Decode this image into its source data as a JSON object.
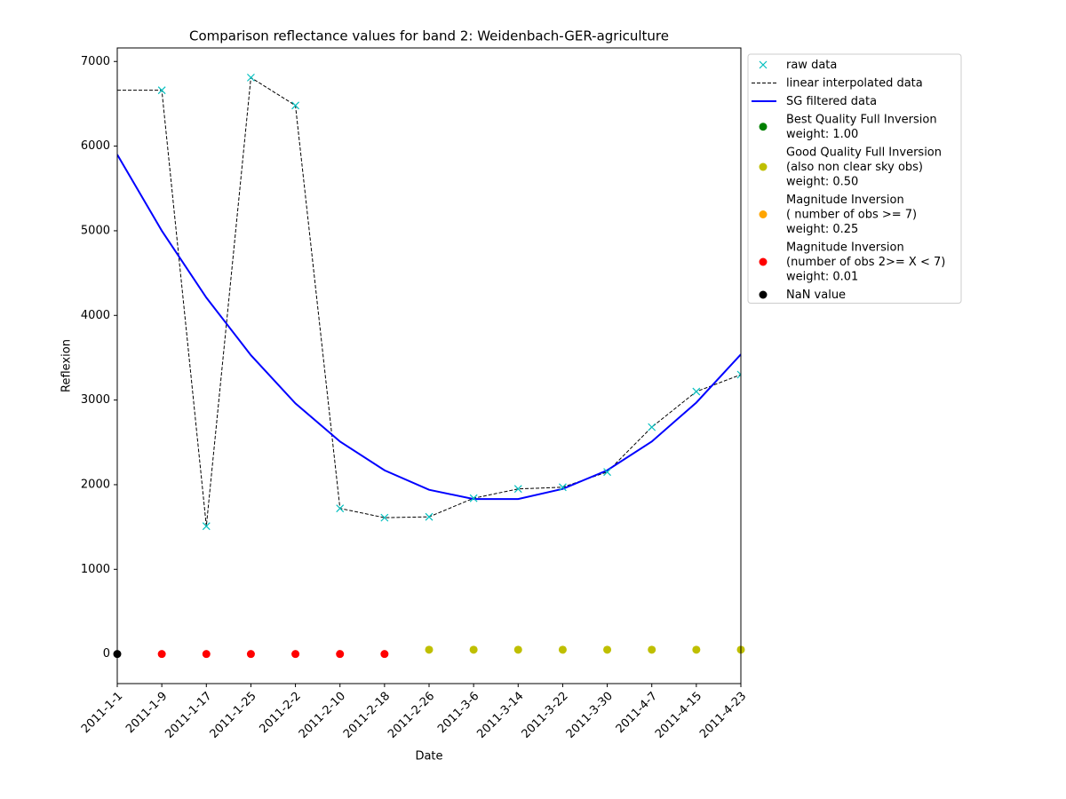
{
  "chart_data": {
    "type": "line",
    "title": "Comparison reflectance values for band 2: Weidenbach-GER-agriculture",
    "x_label": "Date",
    "y_label": "Reflexion",
    "categories": [
      "2011-1-1",
      "2011-1-9",
      "2011-1-17",
      "2011-1-25",
      "2011-2-2",
      "2011-2-10",
      "2011-2-18",
      "2011-2-26",
      "2011-3-6",
      "2011-3-14",
      "2011-3-22",
      "2011-3-30",
      "2011-4-7",
      "2011-4-15",
      "2011-4-23"
    ],
    "ylim": [
      -350,
      7160
    ],
    "yticks": [
      0,
      1000,
      2000,
      3000,
      4000,
      5000,
      6000,
      7000
    ],
    "series": [
      {
        "name": "raw data",
        "color": "#00bfbf",
        "style": "x",
        "values": [
          null,
          6660,
          1510,
          6810,
          6480,
          1720,
          1610,
          1620,
          1840,
          1950,
          1970,
          2150,
          2680,
          3100,
          3300
        ]
      },
      {
        "name": "linear interpolated data",
        "color": "#000000",
        "style": "--",
        "values": [
          6660,
          6660,
          1510,
          6810,
          6480,
          1720,
          1610,
          1620,
          1840,
          1950,
          1970,
          2150,
          2680,
          3100,
          3300
        ]
      },
      {
        "name": "SG filtered data",
        "color": "#0000ff",
        "style": "-",
        "values": [
          5900,
          5000,
          4210,
          3530,
          2960,
          2510,
          2170,
          1940,
          1830,
          1830,
          1950,
          2170,
          2510,
          2970,
          3540
        ]
      },
      {
        "name": "Best Quality Full Inversion\nweight: 1.00",
        "color": "#008000",
        "style": "o",
        "values": [
          null,
          null,
          null,
          null,
          null,
          null,
          null,
          null,
          null,
          null,
          null,
          null,
          null,
          null,
          null
        ]
      },
      {
        "name": "Good Quality Full Inversion\n(also non clear sky obs)\nweight: 0.50",
        "color": "#bfbf00",
        "style": "o",
        "values": [
          null,
          null,
          null,
          null,
          null,
          null,
          null,
          50,
          50,
          50,
          50,
          50,
          50,
          50,
          50
        ]
      },
      {
        "name": "Magnitude Inversion\n( number of obs >= 7)\nweight: 0.25",
        "color": "#ffa500",
        "style": "o",
        "values": [
          null,
          null,
          null,
          null,
          null,
          null,
          null,
          null,
          null,
          null,
          null,
          null,
          null,
          null,
          null
        ]
      },
      {
        "name": "Magnitude Inversion\n(number of obs 2>= X < 7)\nweight: 0.01",
        "color": "#ff0000",
        "style": "o",
        "values": [
          null,
          0,
          0,
          0,
          0,
          0,
          0,
          null,
          null,
          null,
          null,
          null,
          null,
          null,
          null
        ]
      },
      {
        "name": "NaN value",
        "color": "#000000",
        "style": "o",
        "values": [
          0,
          null,
          null,
          null,
          null,
          null,
          null,
          null,
          null,
          null,
          null,
          null,
          null,
          null,
          null
        ]
      }
    ],
    "legend": "outside upper right"
  }
}
